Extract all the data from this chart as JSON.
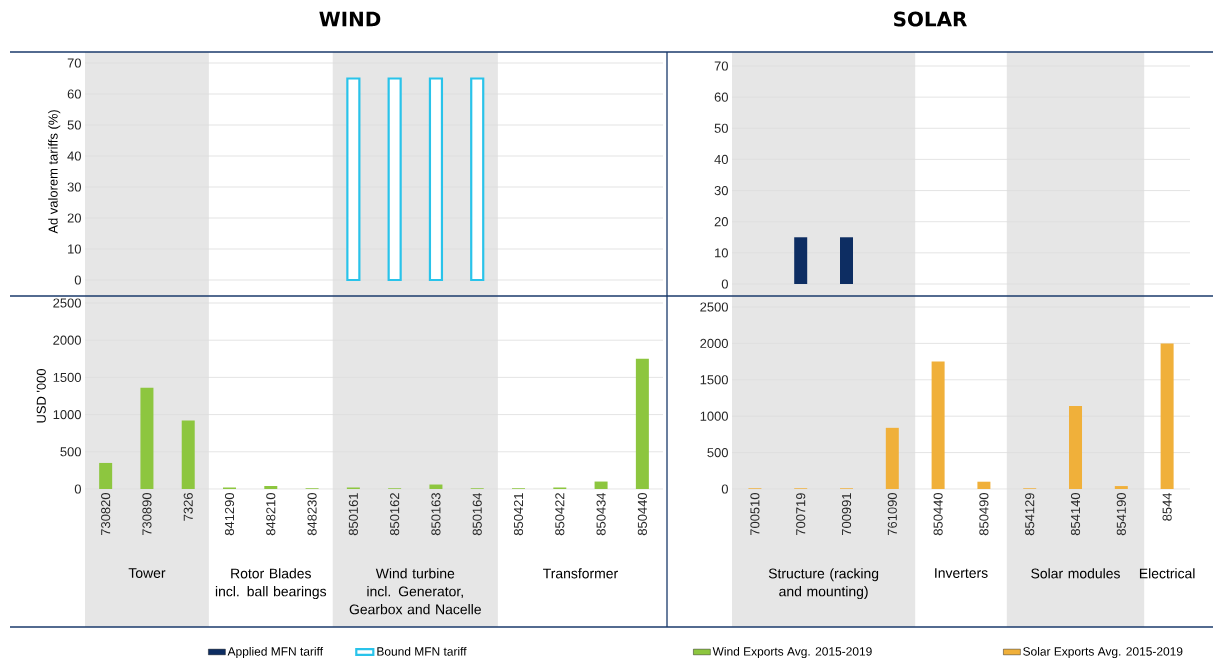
{
  "chart_data": [
    {
      "type": "bar",
      "title": "WIND",
      "ylabel": "Ad valorem tariffs (%)",
      "categories": [
        "730820",
        "730890",
        "7326",
        "841290",
        "848210",
        "848230",
        "850161",
        "850162",
        "850163",
        "850164",
        "850421",
        "850422",
        "850434",
        "850440"
      ],
      "series": [
        {
          "name": "Bound MFN tariff",
          "color": "#29c3ea",
          "values": [
            null,
            null,
            null,
            null,
            null,
            null,
            65,
            65,
            65,
            65,
            null,
            null,
            null,
            null
          ]
        }
      ],
      "ylim": [
        0,
        70
      ],
      "yticks": [
        0,
        10,
        20,
        30,
        40,
        50,
        60,
        70
      ],
      "grid": "y",
      "legend": "bottom",
      "tick_labels": "y",
      "bands": [
        {
          "axis": "x",
          "from": "730820",
          "to": "7326",
          "color": "#e6e6e6"
        },
        {
          "axis": "x",
          "from": "850161",
          "to": "850164",
          "color": "#e6e6e6"
        }
      ]
    },
    {
      "type": "bar",
      "title": "SOLAR",
      "categories": [
        "700510",
        "700719",
        "700991",
        "761090",
        "850440",
        "850490",
        "854129",
        "854140",
        "854190",
        "8544"
      ],
      "series": [
        {
          "name": "Applied MFN tariff",
          "color": "#0d2d62",
          "values": [
            null,
            15,
            15,
            null,
            null,
            null,
            null,
            null,
            null,
            null
          ]
        }
      ],
      "ylim": [
        0,
        70
      ],
      "yticks": [
        0,
        10,
        20,
        30,
        40,
        50,
        60,
        70
      ],
      "grid": "y",
      "legend": "bottom",
      "tick_labels": "y",
      "bands": [
        {
          "axis": "x",
          "from": "700510",
          "to": "761090",
          "color": "#e6e6e6"
        },
        {
          "axis": "x",
          "from": "854129",
          "to": "854190",
          "color": "#e6e6e6"
        }
      ]
    },
    {
      "type": "bar",
      "ylabel": "USD '000",
      "categories": [
        "730820",
        "730890",
        "7326",
        "841290",
        "848210",
        "848230",
        "850161",
        "850162",
        "850163",
        "850164",
        "850421",
        "850422",
        "850434",
        "850440"
      ],
      "series": [
        {
          "name": "Wind Exports Avg. 2015-2019",
          "color": "#8dc63f",
          "values": [
            350,
            1360,
            920,
            20,
            40,
            10,
            20,
            10,
            60,
            10,
            10,
            20,
            100,
            1750
          ]
        }
      ],
      "ylim": [
        0,
        2500
      ],
      "yticks": [
        0,
        500,
        1000,
        1500,
        2000,
        2500
      ],
      "grid": "y",
      "legend": "bottom",
      "bands": [
        {
          "axis": "x",
          "from": "730820",
          "to": "7326",
          "label": "Tower",
          "color": "#e6e6e6"
        },
        {
          "axis": "x",
          "from": "850161",
          "to": "850164",
          "label": "Wind turbine incl. Generator, Gearbox and Nacelle",
          "color": "#e6e6e6"
        }
      ],
      "annotations": [
        "Rotor Blades incl. ball bearings",
        "Transformer"
      ]
    },
    {
      "type": "bar",
      "categories": [
        "700510",
        "700719",
        "700991",
        "761090",
        "850440",
        "850490",
        "854129",
        "854140",
        "854190",
        "8544"
      ],
      "series": [
        {
          "name": "Solar Exports Avg. 2015-2019",
          "color": "#f0b03a",
          "values": [
            10,
            10,
            10,
            840,
            1750,
            100,
            10,
            1140,
            40,
            2000
          ]
        }
      ],
      "ylim": [
        0,
        2500
      ],
      "yticks": [
        0,
        500,
        1000,
        1500,
        2000,
        2500
      ],
      "grid": "y",
      "legend": "bottom",
      "bands": [
        {
          "axis": "x",
          "from": "700510",
          "to": "761090",
          "label": "Structure (racking and mounting)",
          "color": "#e6e6e6"
        },
        {
          "axis": "x",
          "from": "854129",
          "to": "854190",
          "label": "Solar modules",
          "color": "#e6e6e6"
        }
      ],
      "annotations": [
        "Inverters",
        "Electrical"
      ]
    }
  ]
}
